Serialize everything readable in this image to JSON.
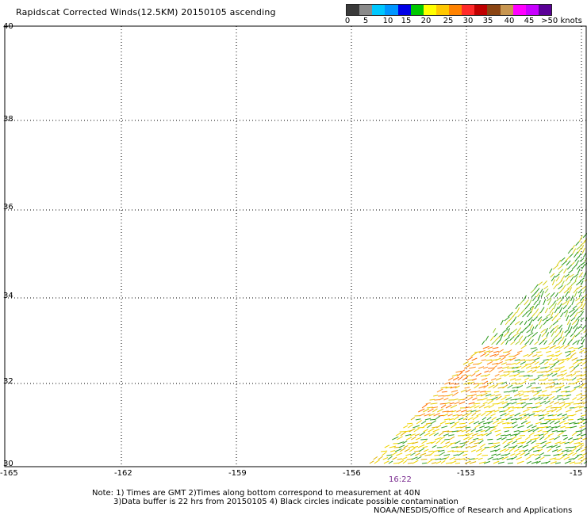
{
  "title": "Rapidscat Corrected Winds(12.5KM) 20150105 ascending",
  "color_scale": {
    "colors": [
      "#3a3a3a",
      "#8a8a8a",
      "#00c8ff",
      "#0096ff",
      "#0000e6",
      "#00c800",
      "#ffff00",
      "#ffc800",
      "#ff8200",
      "#ff2a2a",
      "#c00000",
      "#8b4513",
      "#c89650",
      "#ff00ff",
      "#c800ff",
      "#5a0096"
    ],
    "labels": [
      "0",
      "5",
      "10",
      "15",
      "20",
      "25",
      "30",
      "35",
      "40",
      "45",
      ">50 knots"
    ]
  },
  "axes": {
    "lon_ticks": [
      "-165",
      "-162",
      "-159",
      "-156",
      "-153",
      "-15"
    ],
    "lat_ticks": [
      "40",
      "38",
      "36",
      "34",
      "32",
      "30"
    ]
  },
  "time_label": "16:22",
  "notes": {
    "line1": "Note: 1) Times are GMT 2)Times along bottom correspond to measurement at 40N",
    "line2": "3)Data buffer is 22 hrs from 20150105 4) Black circles indicate possible contamination",
    "line3": "NOAA/NESDIS/Office of Research and Applications"
  }
}
